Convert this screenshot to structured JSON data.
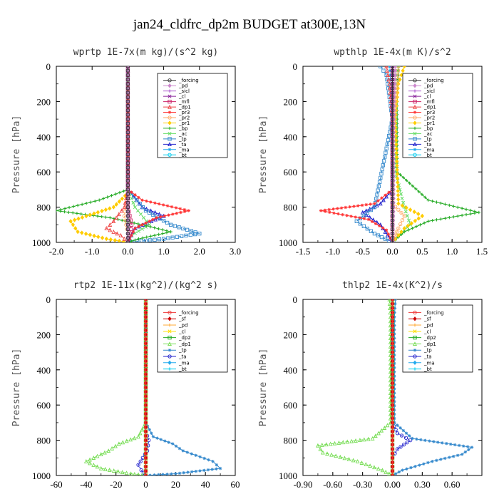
{
  "figure_title": "jan24_cldfrc_dp2m  BUDGET at300E,13N",
  "chart_data": [
    {
      "type": "line",
      "title": "wprtp  1E-7x(m kg)/(s^2 kg)",
      "ylabel": "Pressure [hPa]",
      "xlim": [
        -2.0,
        3.0
      ],
      "ylim": [
        1000,
        0
      ],
      "xticks": [
        -2.0,
        -1.0,
        0.0,
        1.0,
        2.0,
        3.0
      ],
      "xtick_labels": [
        "-2.0",
        "-1.0",
        "0.0",
        "1.0",
        "2.0",
        "3.0"
      ],
      "yticks": [
        0,
        200,
        400,
        600,
        800,
        1000
      ],
      "legend_position": "top-right",
      "series": [
        {
          "name": "_forcing",
          "color": "#333333",
          "x": [
            0,
            0,
            0,
            0,
            0,
            0,
            0,
            0,
            0,
            0,
            0
          ],
          "y": [
            0,
            100,
            200,
            300,
            400,
            500,
            600,
            700,
            800,
            900,
            1000
          ]
        },
        {
          "name": "_pd",
          "color": "#cc88cc",
          "x": [
            0,
            0,
            0,
            0,
            0
          ],
          "y": [
            0,
            250,
            500,
            750,
            1000
          ]
        },
        {
          "name": "_sicl",
          "color": "#aa55cc",
          "x": [
            0,
            0,
            0,
            0,
            0
          ],
          "y": [
            0,
            250,
            500,
            750,
            1000
          ]
        },
        {
          "name": "_cl",
          "color": "#882299",
          "x": [
            0,
            0,
            0,
            0,
            0
          ],
          "y": [
            0,
            250,
            500,
            750,
            1000
          ]
        },
        {
          "name": "_mfl",
          "color": "#cc2266",
          "x": [
            0,
            0,
            0,
            0,
            0.1,
            0
          ],
          "y": [
            0,
            300,
            600,
            800,
            900,
            1000
          ]
        },
        {
          "name": "_dp1",
          "color": "#ee4444",
          "x": [
            0,
            0,
            -0.1,
            -0.4,
            -0.6,
            -0.2,
            0
          ],
          "y": [
            0,
            700,
            800,
            880,
            920,
            960,
            1000
          ]
        },
        {
          "name": "_pr3",
          "color": "#ff3333",
          "x": [
            0,
            0,
            0.4,
            1.7,
            0.8,
            0.2,
            0
          ],
          "y": [
            0,
            700,
            760,
            820,
            860,
            920,
            1000
          ]
        },
        {
          "name": "_pr2",
          "color": "#ffaa66",
          "x": [
            0,
            0,
            -0.1,
            0,
            0
          ],
          "y": [
            0,
            700,
            850,
            950,
            1000
          ]
        },
        {
          "name": "_pr1",
          "color": "#ffcc00",
          "x": [
            0,
            0,
            -0.4,
            -1.6,
            -1.4,
            -0.6,
            0
          ],
          "y": [
            0,
            720,
            800,
            880,
            940,
            980,
            1000
          ]
        },
        {
          "name": "_bp",
          "color": "#22aa22",
          "x": [
            0,
            0,
            -0.8,
            -2.0,
            -0.5,
            0.4,
            1.2,
            0.3,
            0
          ],
          "y": [
            0,
            700,
            760,
            820,
            860,
            900,
            940,
            980,
            1000
          ]
        },
        {
          "name": "_ac",
          "color": "#66dd66",
          "x": [
            0,
            0,
            0.2,
            0.6,
            0.1,
            0
          ],
          "y": [
            0,
            700,
            800,
            900,
            960,
            1000
          ]
        },
        {
          "name": "_tp",
          "color": "#3388cc",
          "x": [
            0,
            0,
            0.5,
            1.2,
            2.0,
            1.0,
            0
          ],
          "y": [
            0,
            700,
            820,
            900,
            950,
            980,
            1000
          ]
        },
        {
          "name": "_ta",
          "color": "#2222cc",
          "x": [
            0,
            0,
            0.4,
            1.0,
            0.2,
            0
          ],
          "y": [
            0,
            700,
            800,
            850,
            920,
            1000
          ]
        },
        {
          "name": "_ma",
          "color": "#22aaee",
          "x": [
            0,
            0,
            0,
            0
          ],
          "y": [
            0,
            500,
            900,
            1000
          ]
        },
        {
          "name": "_bt",
          "color": "#00ccee",
          "x": [
            0,
            0,
            0,
            0
          ],
          "y": [
            0,
            500,
            900,
            1000
          ]
        }
      ]
    },
    {
      "type": "line",
      "title": "wpthlp  1E-4x(m K)/s^2",
      "ylabel": "Pressure [hPa]",
      "xlim": [
        -1.5,
        1.5
      ],
      "ylim": [
        1000,
        0
      ],
      "xticks": [
        -1.5,
        -1.0,
        -0.5,
        0.0,
        0.5,
        1.0,
        1.5
      ],
      "xtick_labels": [
        "-1.5",
        "-1.0",
        "-0.5",
        "0.0",
        "0.5",
        "1.0",
        "1.5"
      ],
      "yticks": [
        0,
        200,
        400,
        600,
        800,
        1000
      ],
      "legend_position": "top-right",
      "series": [
        {
          "name": "_forcing",
          "color": "#333333",
          "x": [
            0,
            0,
            0,
            0,
            0,
            0
          ],
          "y": [
            0,
            200,
            400,
            600,
            800,
            1000
          ]
        },
        {
          "name": "_pd",
          "color": "#cc88cc",
          "x": [
            0.05,
            0.03,
            0.02,
            0.02,
            0.02,
            0
          ],
          "y": [
            0,
            200,
            400,
            600,
            800,
            1000
          ]
        },
        {
          "name": "_sicl",
          "color": "#aa55cc",
          "x": [
            0,
            0,
            0,
            0,
            0
          ],
          "y": [
            0,
            250,
            500,
            750,
            1000
          ]
        },
        {
          "name": "_cl",
          "color": "#882299",
          "x": [
            0,
            0,
            0,
            0,
            0
          ],
          "y": [
            0,
            250,
            500,
            750,
            1000
          ]
        },
        {
          "name": "_mfl",
          "color": "#cc2266",
          "x": [
            0,
            0,
            0,
            0,
            0
          ],
          "y": [
            0,
            250,
            500,
            750,
            1000
          ]
        },
        {
          "name": "_dp1",
          "color": "#ee4444",
          "x": [
            -0.1,
            -0.05,
            0,
            0,
            0,
            0
          ],
          "y": [
            0,
            100,
            300,
            600,
            850,
            1000
          ]
        },
        {
          "name": "_pr3",
          "color": "#ff3333",
          "x": [
            0,
            0,
            -0.3,
            -1.2,
            -0.4,
            -0.1,
            0
          ],
          "y": [
            0,
            700,
            780,
            820,
            870,
            930,
            1000
          ]
        },
        {
          "name": "_pr2",
          "color": "#ffaa66",
          "x": [
            0.1,
            0.05,
            0,
            0,
            0.2,
            0.1,
            0
          ],
          "y": [
            0,
            200,
            500,
            780,
            850,
            920,
            1000
          ]
        },
        {
          "name": "_pr1",
          "color": "#ffcc00",
          "x": [
            0.2,
            0.1,
            0.05,
            0.1,
            0.5,
            0.2,
            0
          ],
          "y": [
            0,
            100,
            300,
            780,
            850,
            920,
            1000
          ]
        },
        {
          "name": "_bp",
          "color": "#22aa22",
          "x": [
            0.1,
            0.08,
            0.08,
            0.6,
            1.45,
            0.6,
            0.2,
            0
          ],
          "y": [
            0,
            200,
            600,
            760,
            830,
            880,
            940,
            1000
          ]
        },
        {
          "name": "_ac",
          "color": "#66dd66",
          "x": [
            0.1,
            0.05,
            0.05,
            0.2,
            0.3,
            0.1,
            0
          ],
          "y": [
            0,
            200,
            600,
            800,
            900,
            960,
            1000
          ]
        },
        {
          "name": "_tp",
          "color": "#3388cc",
          "x": [
            -0.2,
            -0.1,
            0,
            -0.3,
            -0.6,
            -0.3,
            0
          ],
          "y": [
            0,
            50,
            300,
            800,
            880,
            950,
            1000
          ]
        },
        {
          "name": "_ta",
          "color": "#2222cc",
          "x": [
            0,
            0,
            -0.2,
            -0.5,
            -0.2,
            0
          ],
          "y": [
            0,
            700,
            780,
            830,
            900,
            1000
          ]
        },
        {
          "name": "_ma",
          "color": "#22aaee",
          "x": [
            -0.05,
            0,
            0,
            0
          ],
          "y": [
            0,
            200,
            600,
            1000
          ]
        },
        {
          "name": "_bt",
          "color": "#00ccee",
          "x": [
            0,
            0,
            0,
            0
          ],
          "y": [
            0,
            300,
            700,
            1000
          ]
        }
      ]
    },
    {
      "type": "line",
      "title": "rtp2  1E-11x(kg^2)/(kg^2 s)",
      "ylabel": "Pressure [hPa]",
      "xlim": [
        -60,
        60
      ],
      "ylim": [
        1000,
        0
      ],
      "xticks": [
        -60,
        -40,
        -20,
        0,
        20,
        40,
        60
      ],
      "xtick_labels": [
        "-60",
        "-40",
        "-20",
        "0",
        "20",
        "40",
        "60"
      ],
      "yticks": [
        0,
        200,
        400,
        600,
        800,
        1000
      ],
      "legend_position": "top-right",
      "series": [
        {
          "name": "_forcing",
          "color": "#ee3333",
          "x": [
            0,
            0,
            0,
            0,
            0,
            0,
            0,
            0,
            0,
            0,
            0
          ],
          "y": [
            0,
            100,
            200,
            300,
            400,
            500,
            600,
            700,
            800,
            900,
            1000
          ]
        },
        {
          "name": "_sf",
          "color": "#cc0000",
          "x": [
            0,
            0,
            0,
            0,
            0
          ],
          "y": [
            0,
            250,
            500,
            750,
            1000
          ]
        },
        {
          "name": "_pd",
          "color": "#ffaa33",
          "x": [
            0,
            0,
            0,
            0,
            0
          ],
          "y": [
            0,
            250,
            500,
            750,
            1000
          ]
        },
        {
          "name": "_cl",
          "color": "#ffdd00",
          "x": [
            0,
            0,
            0,
            0,
            0
          ],
          "y": [
            0,
            250,
            500,
            750,
            1000
          ]
        },
        {
          "name": "_dp2",
          "color": "#22aa22",
          "x": [
            0,
            0,
            0,
            0
          ],
          "y": [
            0,
            500,
            900,
            1000
          ]
        },
        {
          "name": "_dp1",
          "color": "#77dd55",
          "x": [
            0,
            0,
            -5,
            -18,
            -25,
            -40,
            -30,
            -10,
            0
          ],
          "y": [
            0,
            700,
            780,
            820,
            860,
            920,
            960,
            990,
            1000
          ]
        },
        {
          "name": "_tp",
          "color": "#3388cc",
          "x": [
            0,
            0,
            5,
            18,
            25,
            45,
            50,
            20,
            0
          ],
          "y": [
            0,
            700,
            780,
            820,
            860,
            920,
            960,
            990,
            1000
          ]
        },
        {
          "name": "_ta",
          "color": "#2222cc",
          "x": [
            0,
            0,
            2,
            1,
            -2,
            -5,
            -3,
            0
          ],
          "y": [
            0,
            750,
            800,
            860,
            900,
            940,
            970,
            1000
          ]
        },
        {
          "name": "_ma",
          "color": "#22aaee",
          "x": [
            0,
            0,
            0,
            0
          ],
          "y": [
            0,
            500,
            900,
            1000
          ]
        },
        {
          "name": "_bt",
          "color": "#00ccee",
          "x": [
            0,
            0,
            0,
            0
          ],
          "y": [
            0,
            500,
            900,
            1000
          ]
        }
      ]
    },
    {
      "type": "line",
      "title": "thlp2  1E-4x(K^2)/s",
      "ylabel": "Pressure [hPa]",
      "xlim": [
        -0.9,
        0.9
      ],
      "ylim": [
        1000,
        0
      ],
      "xticks": [
        -0.9,
        -0.6,
        -0.3,
        0.0,
        0.3,
        0.6
      ],
      "xtick_labels": [
        "-0.90",
        "-0.60",
        "-0.30",
        "0.00",
        "0.30",
        "0.60"
      ],
      "yticks": [
        0,
        200,
        400,
        600,
        800,
        1000
      ],
      "legend_position": "top-right",
      "series": [
        {
          "name": "_forcing",
          "color": "#ee3333",
          "x": [
            0,
            0,
            0,
            0,
            0,
            0,
            0,
            0,
            0,
            0,
            0
          ],
          "y": [
            0,
            100,
            200,
            300,
            400,
            500,
            600,
            700,
            800,
            900,
            1000
          ]
        },
        {
          "name": "_sf",
          "color": "#cc0000",
          "x": [
            0,
            0,
            0,
            0,
            0
          ],
          "y": [
            0,
            250,
            500,
            750,
            1000
          ]
        },
        {
          "name": "_pd",
          "color": "#ffaa33",
          "x": [
            0,
            0,
            0,
            0,
            0
          ],
          "y": [
            0,
            250,
            500,
            750,
            1000
          ]
        },
        {
          "name": "_cl",
          "color": "#ffdd00",
          "x": [
            0,
            0,
            0,
            0,
            0
          ],
          "y": [
            0,
            250,
            500,
            750,
            1000
          ]
        },
        {
          "name": "_dp2",
          "color": "#22aa22",
          "x": [
            0,
            0,
            0,
            0
          ],
          "y": [
            0,
            500,
            900,
            1000
          ]
        },
        {
          "name": "_dp1",
          "color": "#77dd55",
          "x": [
            -0.03,
            -0.02,
            -0.02,
            -0.2,
            -0.75,
            -0.7,
            -0.35,
            -0.1,
            0
          ],
          "y": [
            0,
            100,
            700,
            790,
            830,
            870,
            920,
            970,
            1000
          ]
        },
        {
          "name": "_tp",
          "color": "#3388cc",
          "x": [
            0.03,
            0.02,
            0.02,
            0.2,
            0.8,
            0.7,
            0.4,
            0.1,
            0
          ],
          "y": [
            0,
            100,
            700,
            790,
            840,
            880,
            920,
            970,
            1000
          ]
        },
        {
          "name": "_ta",
          "color": "#2222cc",
          "x": [
            0,
            0,
            0.05,
            0.18,
            0.05,
            0,
            0
          ],
          "y": [
            0,
            700,
            760,
            800,
            850,
            900,
            1000
          ]
        },
        {
          "name": "_ma",
          "color": "#22aaee",
          "x": [
            0,
            0,
            0,
            0
          ],
          "y": [
            0,
            500,
            900,
            1000
          ]
        },
        {
          "name": "_bt",
          "color": "#00ccee",
          "x": [
            0,
            0,
            0,
            0
          ],
          "y": [
            0,
            500,
            900,
            1000
          ]
        }
      ]
    }
  ]
}
